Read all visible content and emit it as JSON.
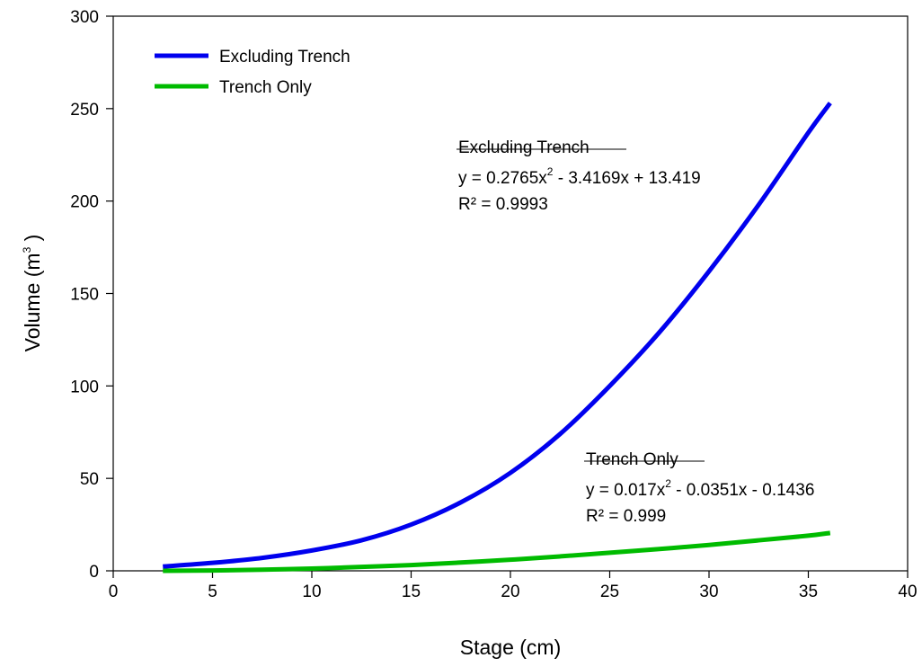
{
  "chart_data": {
    "type": "line",
    "xlabel": "Stage (cm)",
    "ylabel_main": "Volume (m",
    "ylabel_sup": "3",
    "ylabel_close": " )",
    "xlim": [
      0,
      40
    ],
    "ylim": [
      0,
      300
    ],
    "xticks": [
      0,
      5,
      10,
      15,
      20,
      25,
      30,
      35,
      40
    ],
    "yticks": [
      0,
      50,
      100,
      150,
      200,
      250,
      300
    ],
    "grid": false,
    "legend_position": "top-left",
    "series": [
      {
        "name": "Excluding Trench",
        "color": "#0000ee",
        "x": [
          2.5,
          5,
          7.5,
          10,
          12.5,
          15,
          17.5,
          20,
          22.5,
          25,
          27.5,
          30,
          32.5,
          35,
          36.1
        ],
        "y": [
          2.3,
          4.3,
          7,
          11,
          16.5,
          25,
          37,
          53,
          74,
          100,
          129,
          162,
          198,
          237,
          253
        ]
      },
      {
        "name": "Trench Only",
        "color": "#00bb00",
        "x": [
          2.5,
          5,
          7.5,
          10,
          12.5,
          15,
          17.5,
          20,
          22.5,
          25,
          27.5,
          30,
          32.5,
          35,
          36.1
        ],
        "y": [
          0,
          0.2,
          0.6,
          1.2,
          2.1,
          3.1,
          4.5,
          6,
          7.8,
          9.8,
          11.8,
          14,
          16.5,
          19,
          20.5
        ]
      }
    ],
    "annotations": [
      {
        "title": "Excluding Trench",
        "eq_prefix": "y = 0.2765x",
        "eq_sup": "2",
        "eq_suffix": " - 3.4169x + 13.419",
        "r2": "R² = 0.9993"
      },
      {
        "title": "Trench Only",
        "eq_prefix": "y = 0.017x",
        "eq_sup": "2",
        "eq_suffix": " - 0.0351x - 0.1436",
        "r2": "R² = 0.999"
      }
    ]
  }
}
